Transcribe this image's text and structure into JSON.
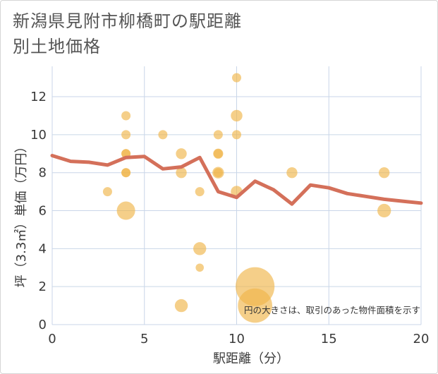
{
  "title": "新潟県見附市柳橋町の駅距離別土地価格",
  "chart_data": {
    "type": "scatter",
    "xlabel": "駅距離（分）",
    "ylabel": "坪（3.3㎡）単価（万円）",
    "xlim": [
      0,
      20
    ],
    "ylim": [
      0,
      13.6
    ],
    "xticks": [
      0,
      5,
      10,
      15,
      20
    ],
    "yticks": [
      0,
      2,
      4,
      6,
      8,
      10,
      12
    ],
    "grid": true,
    "annotation": "円の大きさは、取引のあった物件面積を示す",
    "colors": {
      "points": "#f0b54a",
      "trend": "#d4705a",
      "grid": "#c9d6e8"
    },
    "points": [
      {
        "x": 3,
        "y": 7.0,
        "size": 1
      },
      {
        "x": 4,
        "y": 11.0,
        "size": 1
      },
      {
        "x": 4,
        "y": 10.0,
        "size": 1
      },
      {
        "x": 4,
        "y": 9.0,
        "size": 1
      },
      {
        "x": 4,
        "y": 9.0,
        "size": 1
      },
      {
        "x": 4,
        "y": 8.0,
        "size": 1
      },
      {
        "x": 4,
        "y": 8.0,
        "size": 1
      },
      {
        "x": 4,
        "y": 6.0,
        "size": 4
      },
      {
        "x": 6,
        "y": 10.0,
        "size": 1
      },
      {
        "x": 7,
        "y": 9.0,
        "size": 1.4
      },
      {
        "x": 7,
        "y": 8.0,
        "size": 1.4
      },
      {
        "x": 7,
        "y": 1.0,
        "size": 2
      },
      {
        "x": 8,
        "y": 7.0,
        "size": 1
      },
      {
        "x": 8,
        "y": 4.0,
        "size": 2
      },
      {
        "x": 8,
        "y": 3.0,
        "size": 0.8
      },
      {
        "x": 9,
        "y": 10.0,
        "size": 1
      },
      {
        "x": 9,
        "y": 9.0,
        "size": 1.2
      },
      {
        "x": 9,
        "y": 9.0,
        "size": 1
      },
      {
        "x": 9,
        "y": 8.0,
        "size": 1.6
      },
      {
        "x": 9,
        "y": 8.0,
        "size": 1
      },
      {
        "x": 10,
        "y": 13.0,
        "size": 1
      },
      {
        "x": 10,
        "y": 11.0,
        "size": 1.6
      },
      {
        "x": 10,
        "y": 10.0,
        "size": 1
      },
      {
        "x": 10,
        "y": 7.0,
        "size": 1.6
      },
      {
        "x": 11,
        "y": 2.0,
        "size": 18
      },
      {
        "x": 11,
        "y": 1.0,
        "size": 14
      },
      {
        "x": 13,
        "y": 8.0,
        "size": 1.4
      },
      {
        "x": 18,
        "y": 8.0,
        "size": 1.4
      },
      {
        "x": 18,
        "y": 6.0,
        "size": 2.2
      }
    ],
    "trend": {
      "x": [
        0,
        1,
        2,
        3,
        4,
        5,
        6,
        7,
        8,
        9,
        10,
        11,
        12,
        13,
        14,
        15,
        16,
        17,
        18,
        19,
        20
      ],
      "y": [
        8.9,
        8.6,
        8.55,
        8.4,
        8.8,
        8.85,
        8.2,
        8.3,
        8.8,
        7.0,
        6.7,
        7.55,
        7.1,
        6.35,
        7.35,
        7.2,
        6.9,
        6.75,
        6.6,
        6.5,
        6.4
      ]
    }
  }
}
